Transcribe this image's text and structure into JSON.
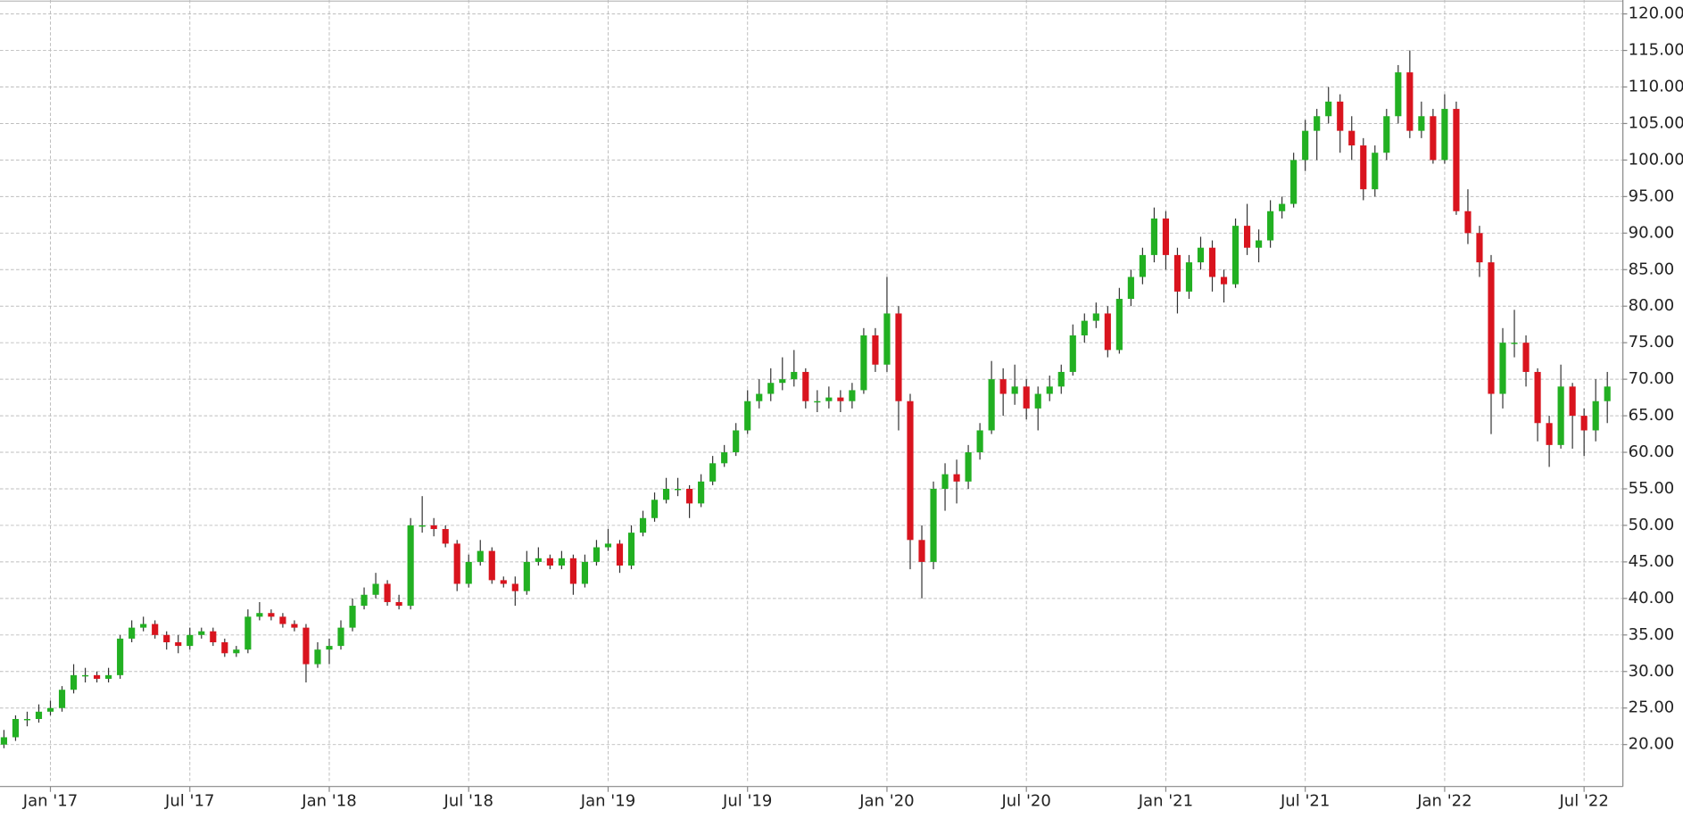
{
  "chart_data": {
    "type": "candlestick",
    "xlim": [
      -2.17,
      67.67
    ],
    "xticks": [
      {
        "value": 0,
        "label": "Jan '17"
      },
      {
        "value": 6,
        "label": "Jul '17"
      },
      {
        "value": 12,
        "label": "Jan '18"
      },
      {
        "value": 18,
        "label": "Jul '18"
      },
      {
        "value": 24,
        "label": "Jan '19"
      },
      {
        "value": 30,
        "label": "Jul '19"
      },
      {
        "value": 36,
        "label": "Jan '20"
      },
      {
        "value": 42,
        "label": "Jul '20"
      },
      {
        "value": 48,
        "label": "Jan '21"
      },
      {
        "value": 54,
        "label": "Jul '21"
      },
      {
        "value": 60,
        "label": "Jan '22"
      },
      {
        "value": 66,
        "label": "Jul '22"
      }
    ],
    "ylim": [
      14.7,
      121.9
    ],
    "yticks": [
      {
        "value": 20,
        "label": "20.00"
      },
      {
        "value": 25,
        "label": "25.00"
      },
      {
        "value": 30,
        "label": "30.00"
      },
      {
        "value": 35,
        "label": "35.00"
      },
      {
        "value": 40,
        "label": "40.00"
      },
      {
        "value": 45,
        "label": "45.00"
      },
      {
        "value": 50,
        "label": "50.00"
      },
      {
        "value": 55,
        "label": "55.00"
      },
      {
        "value": 60,
        "label": "60.00"
      },
      {
        "value": 65,
        "label": "65.00"
      },
      {
        "value": 70,
        "label": "70.00"
      },
      {
        "value": 75,
        "label": "75.00"
      },
      {
        "value": 80,
        "label": "80.00"
      },
      {
        "value": 85,
        "label": "85.00"
      },
      {
        "value": 90,
        "label": "90.00"
      },
      {
        "value": 95,
        "label": "95.00"
      },
      {
        "value": 100,
        "label": "100.00"
      },
      {
        "value": 105,
        "label": "105.00"
      },
      {
        "value": 110,
        "label": "110.00"
      },
      {
        "value": 115,
        "label": "115.00"
      },
      {
        "value": 120,
        "label": "120.00"
      }
    ],
    "grid": true,
    "up_color": "#22b022",
    "down_color": "#d9141e",
    "wick_color": "#333333",
    "x": [
      -2,
      -1.5,
      -1,
      -0.5,
      0,
      0.5,
      1,
      1.5,
      2,
      2.5,
      3,
      3.5,
      4,
      4.5,
      5,
      5.5,
      6,
      6.5,
      7,
      7.5,
      8,
      8.5,
      9,
      9.5,
      10,
      10.5,
      11,
      11.5,
      12,
      12.5,
      13,
      13.5,
      14,
      14.5,
      15,
      15.5,
      16,
      16.5,
      17,
      17.5,
      18,
      18.5,
      19,
      19.5,
      20,
      20.5,
      21,
      21.5,
      22,
      22.5,
      23,
      23.5,
      24,
      24.5,
      25,
      25.5,
      26,
      26.5,
      27,
      27.5,
      28,
      28.5,
      29,
      29.5,
      30,
      30.5,
      31,
      31.5,
      32,
      32.5,
      33,
      33.5,
      34,
      34.5,
      35,
      35.5,
      36,
      36.5,
      37,
      37.5,
      38,
      38.5,
      39,
      39.5,
      40,
      40.5,
      41,
      41.5,
      42,
      42.5,
      43,
      43.5,
      44,
      44.5,
      45,
      45.5,
      46,
      46.5,
      47,
      47.5,
      48,
      48.5,
      49,
      49.5,
      50,
      50.5,
      51,
      51.5,
      52,
      52.5,
      53,
      53.5,
      54,
      54.5,
      55,
      55.5,
      56,
      56.5,
      57,
      57.5,
      58,
      58.5,
      59,
      59.5,
      60,
      60.5,
      61,
      61.5,
      62,
      62.5,
      63,
      63.5,
      64,
      64.5,
      65,
      65.5,
      66,
      66.5,
      67
    ],
    "open": [
      20,
      21,
      23.5,
      23.5,
      24.5,
      25,
      27.5,
      29.5,
      29.5,
      29,
      29.5,
      34.5,
      36,
      36.5,
      35,
      34,
      33.5,
      35,
      35.5,
      34,
      32.5,
      33,
      37.5,
      38,
      37.5,
      36.5,
      36,
      31,
      33,
      33.5,
      36,
      39,
      40.5,
      42,
      39.5,
      39,
      50,
      50,
      49.5,
      47.5,
      42,
      45,
      46.5,
      42.5,
      42,
      41,
      45,
      45.5,
      44.5,
      45.5,
      42,
      45,
      47,
      47.5,
      44.5,
      49,
      51,
      53.5,
      55,
      55,
      53,
      56,
      58.5,
      60,
      63,
      67,
      68,
      69.5,
      70,
      71,
      67,
      67,
      67.5,
      67,
      68.5,
      76,
      72,
      79,
      67,
      48,
      45,
      55,
      57,
      56,
      60,
      63,
      70,
      68,
      69,
      66,
      68,
      69,
      71,
      76,
      78,
      79,
      74,
      81,
      84,
      87,
      92,
      87,
      82,
      86,
      88,
      84,
      83,
      91,
      88,
      89,
      93,
      94,
      100,
      104,
      106,
      108,
      104,
      102,
      96,
      101,
      106,
      112,
      104,
      106,
      100,
      107,
      93,
      90,
      86,
      68,
      75,
      75,
      71,
      64,
      61,
      69,
      65,
      63,
      67
    ],
    "high": [
      22,
      24,
      24.5,
      25.5,
      26,
      28,
      31,
      30.5,
      30,
      30.5,
      35,
      37,
      37.5,
      37,
      35.5,
      35,
      36,
      36,
      36,
      34.5,
      33.5,
      38.5,
      39.5,
      38.5,
      38,
      37,
      36.5,
      34,
      34.5,
      37,
      40,
      41.5,
      43.5,
      42.5,
      40.5,
      51,
      54,
      51,
      50,
      48,
      46,
      48,
      47,
      43,
      43,
      46.5,
      47,
      46,
      46.5,
      46,
      46,
      48,
      49.5,
      48,
      50,
      52,
      54.5,
      56.5,
      56.5,
      55.5,
      57,
      59.5,
      61,
      64,
      68.5,
      70,
      71.5,
      73,
      74,
      71.5,
      68.5,
      69,
      68.5,
      69.5,
      77,
      77,
      84,
      80,
      68,
      50,
      56,
      58.5,
      59,
      61,
      64,
      72.5,
      71.5,
      72,
      70,
      69,
      70.5,
      72,
      77.5,
      79,
      80.5,
      80,
      82.5,
      85,
      88,
      93.5,
      93,
      88,
      87,
      89.5,
      89,
      85,
      92,
      94,
      90.5,
      94.5,
      95,
      101,
      105.5,
      107,
      110,
      109,
      106,
      103,
      102,
      107,
      113,
      115,
      108,
      107,
      109,
      108,
      96,
      91,
      87,
      77,
      79.5,
      76,
      71.5,
      65,
      72,
      69.5,
      66,
      70,
      71
    ],
    "low": [
      19.5,
      20.5,
      22.5,
      23,
      24,
      24.5,
      27,
      28.5,
      28.5,
      28.5,
      29,
      34,
      35.5,
      34.5,
      33,
      32.5,
      33,
      34.5,
      33.5,
      32,
      32,
      32.5,
      37,
      37,
      36,
      35.5,
      28.5,
      30.5,
      31,
      33,
      35.5,
      38.5,
      40,
      39,
      38.5,
      38.5,
      49,
      48.5,
      47,
      41,
      41.5,
      44.5,
      42,
      41.5,
      39,
      40.5,
      44.5,
      44,
      44,
      40.5,
      41.5,
      44.5,
      46.5,
      43.5,
      44,
      48.5,
      50.5,
      53,
      54,
      51,
      52.5,
      55.5,
      58,
      59.5,
      62.5,
      66,
      67,
      68.5,
      69,
      66,
      65.5,
      66,
      65.5,
      66,
      68,
      71,
      71,
      63,
      44,
      40,
      44,
      52,
      53,
      55,
      59,
      62.5,
      65,
      66.5,
      64.5,
      63,
      67,
      68,
      70.5,
      75,
      77,
      73,
      73.5,
      80,
      83,
      86,
      85,
      79,
      81,
      85,
      82,
      80.5,
      82.5,
      87,
      86,
      88,
      92,
      93.5,
      98.5,
      100,
      105,
      101,
      100,
      94.5,
      95,
      100,
      105,
      103,
      103,
      99.5,
      99.5,
      92.5,
      88.5,
      84,
      62.5,
      66,
      73,
      69,
      61.5,
      58,
      60.5,
      60.5,
      59.5,
      61.5,
      64
    ],
    "close": [
      21,
      23.5,
      23.5,
      24.5,
      25,
      27.5,
      29.5,
      29.5,
      29,
      29.5,
      34.5,
      36,
      36.5,
      35,
      34,
      33.5,
      35,
      35.5,
      34,
      32.5,
      33,
      37.5,
      38,
      37.5,
      36.5,
      36,
      31,
      33,
      33.5,
      36,
      39,
      40.5,
      42,
      39.5,
      39,
      50,
      50,
      49.5,
      47.5,
      42,
      45,
      46.5,
      42.5,
      42,
      41,
      45,
      45.5,
      44.5,
      45.5,
      42,
      45,
      47,
      47.5,
      44.5,
      49,
      51,
      53.5,
      55,
      55,
      53,
      56,
      58.5,
      60,
      63,
      67,
      68,
      69.5,
      70,
      71,
      67,
      67,
      67.5,
      67,
      68.5,
      76,
      72,
      79,
      67,
      48,
      45,
      55,
      57,
      56,
      60,
      63,
      70,
      68,
      69,
      66,
      68,
      69,
      71,
      76,
      78,
      79,
      74,
      81,
      84,
      87,
      92,
      87,
      82,
      86,
      88,
      84,
      83,
      91,
      88,
      89,
      93,
      94,
      100,
      104,
      106,
      108,
      104,
      102,
      96,
      101,
      106,
      112,
      104,
      106,
      100,
      107,
      93,
      90,
      86,
      68,
      75,
      75,
      71,
      64,
      61,
      69,
      65,
      63,
      67,
      69
    ]
  }
}
